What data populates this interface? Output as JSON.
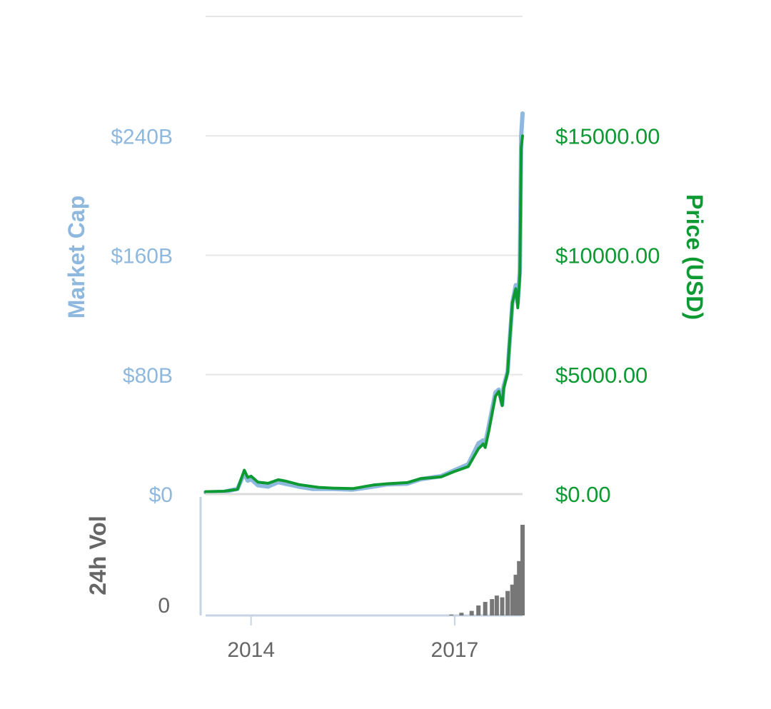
{
  "chart_data": {
    "type": "line",
    "y_left": {
      "title": "Market Cap",
      "ticks": [
        {
          "value": 0,
          "label": "$0"
        },
        {
          "value": 80,
          "label": "$80B"
        },
        {
          "value": 160,
          "label": "$160B"
        },
        {
          "value": 240,
          "label": "$240B"
        }
      ],
      "range": [
        0,
        320
      ],
      "unit": "B USD",
      "color": "#8fb8de"
    },
    "y_right": {
      "title": "Price (USD)",
      "ticks": [
        {
          "value": 0,
          "label": "$0.00"
        },
        {
          "value": 5000,
          "label": "$5000.00"
        },
        {
          "value": 10000,
          "label": "$10000.00"
        },
        {
          "value": 15000,
          "label": "$15000.00"
        }
      ],
      "range": [
        0,
        20000
      ],
      "color": "#0d9a33"
    },
    "volume": {
      "title": "24h Vol",
      "ticks": [
        {
          "value": 0,
          "label": "0"
        }
      ],
      "color": "#777777",
      "x": [
        2016.95,
        2017.1,
        2017.25,
        2017.35,
        2017.45,
        2017.55,
        2017.62,
        2017.7,
        2017.78,
        2017.85,
        2017.9,
        2017.95,
        2018.0
      ],
      "values": [
        0.01,
        0.03,
        0.05,
        0.11,
        0.15,
        0.18,
        0.22,
        0.2,
        0.27,
        0.34,
        0.45,
        0.6,
        1.0
      ],
      "relative_scale": true
    },
    "x_axis": {
      "range": [
        2013.33,
        2018.0
      ],
      "ticks": [
        {
          "value": 2014,
          "label": "2014"
        },
        {
          "value": 2017,
          "label": "2017"
        }
      ]
    },
    "series": [
      {
        "name": "Market Cap",
        "axis": "left",
        "color": "#8fb8de",
        "x": [
          2013.33,
          2013.6,
          2013.8,
          2013.9,
          2013.95,
          2014.0,
          2014.1,
          2014.25,
          2014.4,
          2014.5,
          2014.7,
          2014.9,
          2015.0,
          2015.2,
          2015.5,
          2015.8,
          2016.0,
          2016.3,
          2016.5,
          2016.8,
          2017.0,
          2017.2,
          2017.35,
          2017.42,
          2017.45,
          2017.5,
          2017.6,
          2017.65,
          2017.7,
          2017.72,
          2017.78,
          2017.8,
          2017.85,
          2017.9,
          2017.93,
          2017.96,
          2017.98,
          2018.0
        ],
        "values": [
          1.2,
          1.5,
          3.5,
          14,
          9,
          10,
          6,
          5,
          8,
          7,
          5,
          3.5,
          3.5,
          3.5,
          3,
          5,
          6.5,
          7,
          10,
          12,
          16,
          20,
          34,
          36,
          34,
          45,
          68,
          70,
          60,
          72,
          82,
          96,
          128,
          140,
          128,
          150,
          240,
          255
        ]
      },
      {
        "name": "Price (USD)",
        "axis": "right",
        "color": "#0d9a33",
        "x": [
          2013.33,
          2013.6,
          2013.8,
          2013.9,
          2013.95,
          2014.0,
          2014.1,
          2014.25,
          2014.4,
          2014.5,
          2014.7,
          2014.9,
          2015.0,
          2015.2,
          2015.5,
          2015.8,
          2016.0,
          2016.3,
          2016.5,
          2016.8,
          2017.0,
          2017.2,
          2017.35,
          2017.42,
          2017.45,
          2017.5,
          2017.6,
          2017.65,
          2017.7,
          2017.72,
          2017.78,
          2017.8,
          2017.85,
          2017.9,
          2017.93,
          2017.96,
          2017.98,
          2018.0
        ],
        "values": [
          100,
          120,
          200,
          1000,
          700,
          750,
          500,
          450,
          600,
          550,
          400,
          320,
          280,
          250,
          230,
          380,
          430,
          480,
          650,
          720,
          950,
          1150,
          1900,
          2100,
          1950,
          2600,
          4100,
          4300,
          3700,
          4400,
          5100,
          6000,
          8000,
          8600,
          7800,
          9200,
          14500,
          15000
        ]
      }
    ]
  }
}
